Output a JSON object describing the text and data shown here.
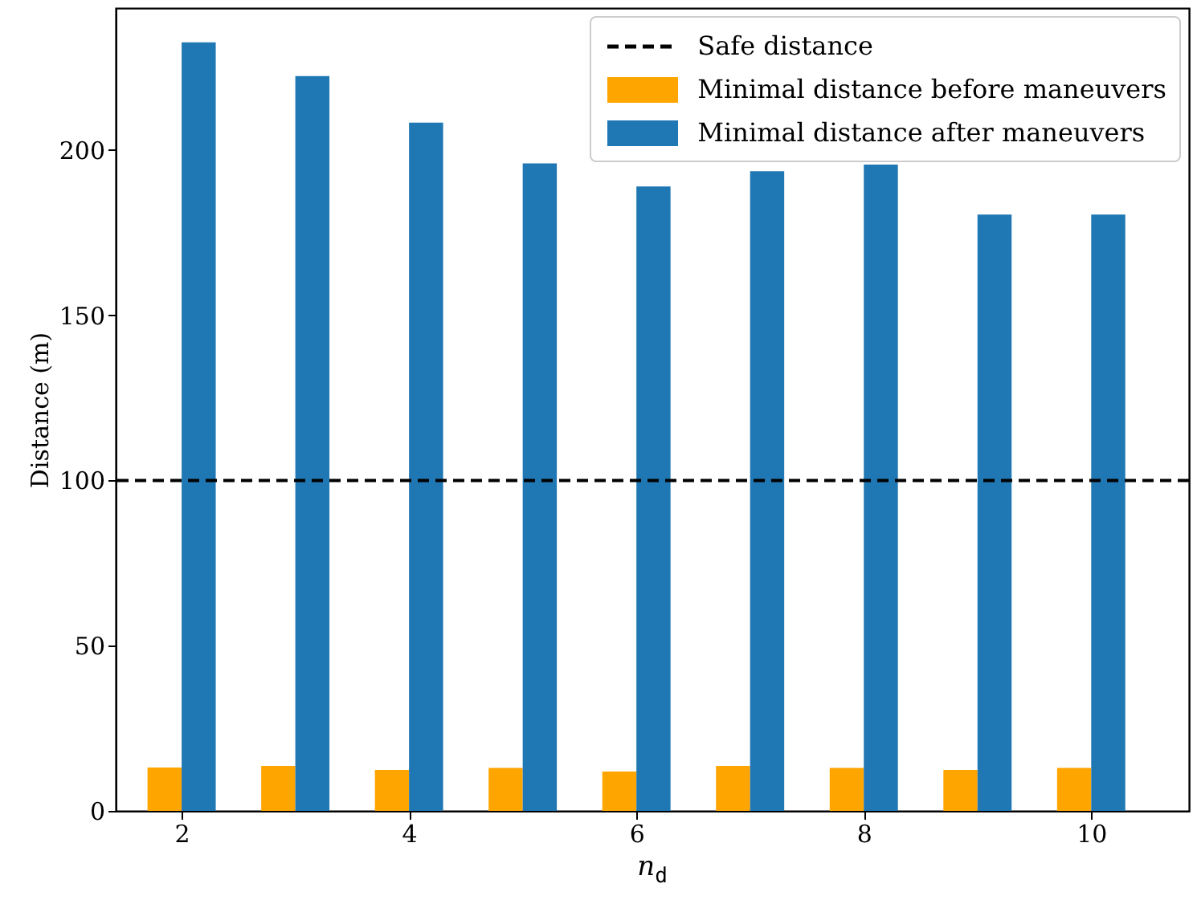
{
  "chart_data": {
    "type": "bar",
    "xlabel": "n$_{d}$",
    "ylabel": "Distance (m)",
    "x": [
      2,
      3,
      4,
      5,
      6,
      7,
      8,
      9,
      10
    ],
    "series": [
      {
        "name": "Minimal distance before maneuvers",
        "color": "#ffa500",
        "values": [
          13.1,
          13.6,
          12.4,
          13.0,
          11.9,
          13.6,
          13.0,
          12.4,
          13.0
        ]
      },
      {
        "name": "Minimal distance after maneuvers",
        "color": "#1f77b4",
        "values": [
          232.6,
          222.4,
          208.3,
          196,
          189,
          193.6,
          195.6,
          180.5,
          180.5
        ]
      }
    ],
    "ref_lines": [
      {
        "axis": "y",
        "value": 100,
        "label": "Safe distance",
        "color": "#000000",
        "line_style": "dashed"
      }
    ],
    "xlim": [
      1.42,
      10.86
    ],
    "xticks": [
      2,
      4,
      6,
      8,
      10
    ],
    "ylim": [
      0,
      243
    ],
    "yticks": [
      0,
      50,
      100,
      150,
      200
    ],
    "legend": "top right",
    "grid": false
  }
}
